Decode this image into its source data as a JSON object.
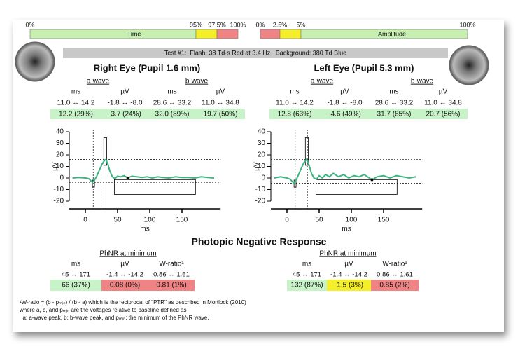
{
  "header": {
    "scales": [
      {
        "label": "Time",
        "ticks": [
          {
            "value": 0,
            "label": "0%"
          },
          {
            "value": 95,
            "label": "95%"
          },
          {
            "value": 97.5,
            "label": "97.5%"
          },
          {
            "value": 100,
            "label": "100%"
          }
        ],
        "colors": [
          "#c6efb0",
          "#f5ef2a",
          "#f08484"
        ]
      },
      {
        "label": "Amplitude",
        "ticks": [
          {
            "value": 0,
            "label": "0%"
          },
          {
            "value": 2.5,
            "label": "2.5%"
          },
          {
            "value": 5,
            "label": "5%"
          },
          {
            "value": 100,
            "label": "100%"
          }
        ],
        "colors": [
          "#f08484",
          "#f5ef2a",
          "#c6efb0"
        ]
      }
    ],
    "test_info": "Test #1:  Flash: 38 Td·s Red at 3.4 Hz   Background: 380 Td Blue"
  },
  "eyes": [
    {
      "title": "Right Eye (Pupil 1.6 mm)",
      "a_wave": "a-wave",
      "b_wave": "b-wave",
      "units": [
        "ms",
        "µV",
        "ms",
        "µV"
      ],
      "ranges": [
        {
          "values": [
            11.0,
            14.2
          ],
          "label": "11.0 ↔ 14.2"
        },
        {
          "values": [
            -1.8,
            -8.0
          ],
          "label": "-1.8 ↔ -8.0"
        },
        {
          "values": [
            28.6,
            33.2
          ],
          "label": "28.6 ↔ 33.2"
        },
        {
          "values": [
            11.0,
            34.8
          ],
          "label": "11.0 ↔ 34.8"
        }
      ],
      "results": [
        {
          "value": 12.2,
          "label": "12.2 (29%)",
          "color": "#c8f2c8"
        },
        {
          "value": -3.7,
          "label": "-3.7 (24%)",
          "color": "#c8f2c8"
        },
        {
          "value": 32.0,
          "label": "32.0 (89%)",
          "color": "#c8f2c8"
        },
        {
          "value": 19.7,
          "label": "19.7 (50%)",
          "color": "#c8f2c8"
        }
      ],
      "chart": {
        "type": "line",
        "x": [
          -20,
          -10,
          0,
          5,
          8,
          11,
          14,
          18,
          22,
          26,
          30,
          32,
          35,
          38,
          42,
          46,
          50,
          55,
          60,
          66,
          72,
          80,
          88,
          96,
          104,
          112,
          120,
          130,
          140,
          150,
          160,
          170,
          180,
          190,
          200
        ],
        "values": [
          0,
          0.5,
          0,
          -0.5,
          -2,
          -3.7,
          -2,
          2,
          7,
          12,
          15.5,
          16,
          12,
          6,
          1,
          -0.5,
          1.5,
          1,
          2,
          0.1,
          1.5,
          1,
          0.5,
          1,
          0,
          1,
          0.5,
          0,
          1,
          0.5,
          0.5,
          0,
          1,
          0.5,
          0
        ],
        "color": "#3cb482",
        "xlim": [
          -25,
          210
        ],
        "xticks": [
          0,
          50,
          100,
          150
        ],
        "ylim": [
          -20,
          40
        ],
        "yticks": [
          -20,
          -10,
          0,
          10,
          20,
          30,
          40
        ],
        "x_label": "ms",
        "y_label": "µV"
      },
      "phnr": {
        "title": "PhNR at minimum",
        "units": [
          "ms",
          "µV",
          "W-ratio¹"
        ],
        "ranges": [
          {
            "values": [
              45,
              171
            ],
            "label": "45 ↔ 171"
          },
          {
            "values": [
              -1.4,
              -14.2
            ],
            "label": "-1.4 ↔ -14.2"
          },
          {
            "values": [
              0.86,
              1.61
            ],
            "label": "0.86 ↔ 1.61"
          }
        ],
        "results": [
          {
            "value": 66,
            "label": "66 (37%)",
            "color": "#c8f2c8"
          },
          {
            "value": 0.08,
            "label": "0.08 (0%)",
            "color": "#f08484"
          },
          {
            "value": 0.81,
            "label": "0.81 (1%)",
            "color": "#f08484"
          }
        ]
      }
    },
    {
      "title": "Left Eye (Pupil 5.3 mm)",
      "a_wave": "a-wave",
      "b_wave": "b-wave",
      "units": [
        "ms",
        "µV",
        "ms",
        "µV"
      ],
      "ranges": [
        {
          "values": [
            11.0,
            14.2
          ],
          "label": "11.0 ↔ 14.2"
        },
        {
          "values": [
            -1.8,
            -8.0
          ],
          "label": "-1.8 ↔ -8.0"
        },
        {
          "values": [
            28.6,
            33.2
          ],
          "label": "28.6 ↔ 33.2"
        },
        {
          "values": [
            11.0,
            34.8
          ],
          "label": "11.0 ↔ 34.8"
        }
      ],
      "results": [
        {
          "value": 12.8,
          "label": "12.8 (63%)",
          "color": "#c8f2c8"
        },
        {
          "value": -4.6,
          "label": "-4.6 (49%)",
          "color": "#c8f2c8"
        },
        {
          "value": 31.7,
          "label": "31.7 (85%)",
          "color": "#c8f2c8"
        },
        {
          "value": 20.7,
          "label": "20.7 (56%)",
          "color": "#c8f2c8"
        }
      ],
      "chart": {
        "type": "line",
        "x": [
          -20,
          -10,
          0,
          5,
          8,
          11,
          14,
          18,
          22,
          26,
          30,
          32,
          35,
          38,
          42,
          46,
          50,
          55,
          60,
          66,
          72,
          80,
          88,
          96,
          104,
          112,
          120,
          132,
          140,
          150,
          160,
          170,
          180,
          190,
          200
        ],
        "values": [
          0,
          1,
          0,
          -1,
          -3,
          -4.6,
          -2,
          3,
          8,
          13,
          16,
          15,
          10,
          4,
          0,
          -1,
          2,
          0,
          3,
          1,
          4,
          1,
          3,
          0,
          2,
          1,
          3,
          -1.5,
          1,
          2,
          0,
          2,
          1,
          0,
          1
        ],
        "color": "#3cb482",
        "xlim": [
          -25,
          210
        ],
        "xticks": [
          0,
          50,
          100,
          150
        ],
        "ylim": [
          -20,
          40
        ],
        "yticks": [
          -20,
          -10,
          0,
          10,
          20,
          30,
          40
        ],
        "x_label": "ms",
        "y_label": "µV"
      },
      "phnr": {
        "title": "PhNR at minimum",
        "units": [
          "ms",
          "µV",
          "W-ratio¹"
        ],
        "ranges": [
          {
            "values": [
              45,
              171
            ],
            "label": "45 ↔ 171"
          },
          {
            "values": [
              -1.4,
              -14.2
            ],
            "label": "-1.4 ↔ -14.2"
          },
          {
            "values": [
              0.86,
              1.61
            ],
            "label": "0.86 ↔ 1.61"
          }
        ],
        "results": [
          {
            "value": 132,
            "label": "132 (87%)",
            "color": "#c8f2c8"
          },
          {
            "value": -1.5,
            "label": "-1.5 (3%)",
            "color": "#f5ef2a"
          },
          {
            "value": 0.85,
            "label": "0.85 (2%)",
            "color": "#f08484"
          }
        ]
      }
    }
  ],
  "phnr_title": "Photopic Negative Response",
  "footnote": [
    "¹W-ratio = (b - pₘᵢₙ) / (b - a) which is the reciprocal of \"PTR\" as described in Mortlock (2010)",
    "where a, b, and pₘᵢₙ are the voltages relative to baseline defined as",
    "  a: a-wave peak, b: b-wave peak, and pₘᵢₙ: the minimum of the PhNR wave."
  ]
}
